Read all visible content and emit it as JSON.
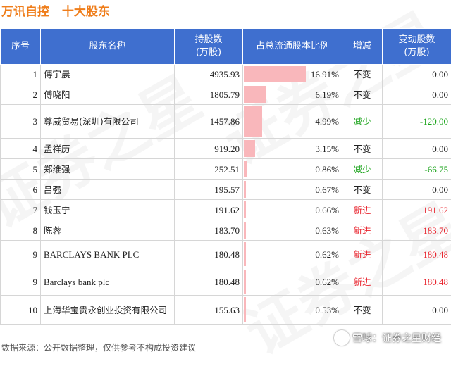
{
  "title": {
    "company": "万讯自控",
    "subtitle": "十大股东"
  },
  "columns": {
    "idx": "序号",
    "name": "股东名称",
    "shares": "持股数\n(万股)",
    "ratio": "占总流通股本比例",
    "change": "增减",
    "delta": "变动股数\n(万股)"
  },
  "rows": [
    {
      "idx": "1",
      "name": "傅宇晨",
      "shares": "4935.93",
      "ratio": "16.91%",
      "ratio_value": 16.91,
      "change": "不变",
      "change_type": "flat",
      "delta": "0.00"
    },
    {
      "idx": "2",
      "name": "傅晓阳",
      "shares": "1805.79",
      "ratio": "6.19%",
      "ratio_value": 6.19,
      "change": "不变",
      "change_type": "flat",
      "delta": "0.00"
    },
    {
      "idx": "3",
      "name": "尊威贸易(深圳)有限公司",
      "shares": "1457.86",
      "ratio": "4.99%",
      "ratio_value": 4.99,
      "change": "减少",
      "change_type": "down",
      "delta": "-120.00"
    },
    {
      "idx": "4",
      "name": "孟祥历",
      "shares": "919.20",
      "ratio": "3.15%",
      "ratio_value": 3.15,
      "change": "不变",
      "change_type": "flat",
      "delta": "0.00"
    },
    {
      "idx": "5",
      "name": "郑维强",
      "shares": "252.51",
      "ratio": "0.86%",
      "ratio_value": 0.86,
      "change": "减少",
      "change_type": "down",
      "delta": "-66.75"
    },
    {
      "idx": "6",
      "name": "吕强",
      "shares": "195.57",
      "ratio": "0.67%",
      "ratio_value": 0.67,
      "change": "不变",
      "change_type": "flat",
      "delta": "0.00"
    },
    {
      "idx": "7",
      "name": "钱玉宁",
      "shares": "191.62",
      "ratio": "0.66%",
      "ratio_value": 0.66,
      "change": "新进",
      "change_type": "up",
      "delta": "191.62"
    },
    {
      "idx": "8",
      "name": "陈蓉",
      "shares": "183.70",
      "ratio": "0.63%",
      "ratio_value": 0.63,
      "change": "新进",
      "change_type": "up",
      "delta": "183.70"
    },
    {
      "idx": "9",
      "name": "BARCLAYS BANK PLC",
      "shares": "180.48",
      "ratio": "0.62%",
      "ratio_value": 0.62,
      "change": "新进",
      "change_type": "up",
      "delta": "180.48"
    },
    {
      "idx": "9",
      "name": "Barclays bank plc",
      "shares": "180.48",
      "ratio": "0.62%",
      "ratio_value": 0.62,
      "change": "新进",
      "change_type": "up",
      "delta": "180.48"
    },
    {
      "idx": "10",
      "name": "上海华宝贵永创业投资有限公司",
      "shares": "155.63",
      "ratio": "0.53%",
      "ratio_value": 0.53,
      "change": "不变",
      "change_type": "flat",
      "delta": "0.00"
    }
  ],
  "footer": {
    "source": "数据来源：公开数据整理，仅供参考不构成投资建议"
  },
  "brand": {
    "text": "雪球：证券之星财经"
  },
  "watermark": {
    "text": "证券之星"
  },
  "colors": {
    "title": "#ef7d1a",
    "header_bg": "#3f6fcf",
    "bar": "#f9b7bb",
    "up": "#e8202a",
    "down": "#19a319"
  }
}
